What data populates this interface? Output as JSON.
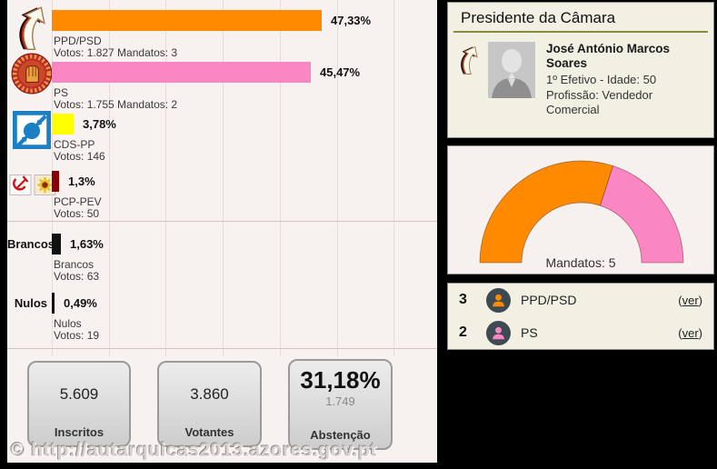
{
  "watermark": "© http://autarquicas2013.azores.gov.pt",
  "colors": {
    "ppd_psd": "#ff8a00",
    "ps": "#fa86c3",
    "cds_pp": "#ffff00",
    "pcp_pev": "#8b0000",
    "brancos": "#111111",
    "nulos": "#111111",
    "heading_rule": "#8b8b3e",
    "avatar_circle": "#3d4a52",
    "left_bg": "#f7f1f0",
    "panel_bg": "#f2efe3"
  },
  "chart_data": [
    {
      "type": "bar",
      "orientation": "horizontal",
      "unit": "%",
      "xlim": [
        0,
        67.5
      ],
      "gridline_interval": 10,
      "bars": [
        {
          "name": "PPD/PSD",
          "pct": 47.33,
          "pct_label": "47,33%",
          "votes_label": "Votos: 1.827 Mandatos: 3",
          "votes": 1827,
          "mandates": 3,
          "color": "#ff8a00",
          "logo": "psd",
          "side_label": ""
        },
        {
          "name": "PS",
          "pct": 45.47,
          "pct_label": "45,47%",
          "votes_label": "Votos: 1.755 Mandatos: 2",
          "votes": 1755,
          "mandates": 2,
          "color": "#fa86c3",
          "logo": "ps",
          "side_label": ""
        },
        {
          "name": "CDS-PP",
          "pct": 3.78,
          "pct_label": "3,78%",
          "votes_label": "Votos: 146",
          "votes": 146,
          "color": "#ffff00",
          "logo": "cds",
          "side_label": ""
        },
        {
          "name": "PCP-PEV",
          "pct": 1.3,
          "pct_label": "1,3%",
          "votes_label": "Votos: 50",
          "votes": 50,
          "color": "#8b0000",
          "logo": "pcp",
          "side_label": ""
        },
        {
          "name": "Brancos",
          "pct": 1.63,
          "pct_label": "1,63%",
          "votes_label": "Votos: 63",
          "votes": 63,
          "color": "#111111",
          "logo": "",
          "side_label": "Brancos"
        },
        {
          "name": "Nulos",
          "pct": 0.49,
          "pct_label": "0,49%",
          "votes_label": "Votos: 19",
          "votes": 19,
          "color": "#111111",
          "logo": "",
          "side_label": "Nulos"
        }
      ]
    },
    {
      "type": "donut-half",
      "title": "Mandatos: 5",
      "total": 5,
      "segments": [
        {
          "name": "PPD/PSD",
          "value": 3,
          "color": "#ff8a00"
        },
        {
          "name": "PS",
          "value": 2,
          "color": "#fa86c3"
        }
      ]
    }
  ],
  "summary_boxes": [
    {
      "value": "5.609",
      "label": "Inscritos"
    },
    {
      "value": "3.860",
      "label": "Votantes"
    },
    {
      "value": "31,18%",
      "sub": "1.749",
      "label": "Abstenção"
    }
  ],
  "president": {
    "heading": "Presidente da Câmara",
    "name": "José António Marcos Soares",
    "line1": "1º Efetivo - Idade: 50",
    "line2": "Profissão: Vendedor Comercial"
  },
  "mandates_list": [
    {
      "count": "3",
      "party": "PPD/PSD",
      "color": "#ff8a00",
      "link": "(ver)"
    },
    {
      "count": "2",
      "party": "PS",
      "color": "#fa86c3",
      "link": "(ver)"
    }
  ]
}
